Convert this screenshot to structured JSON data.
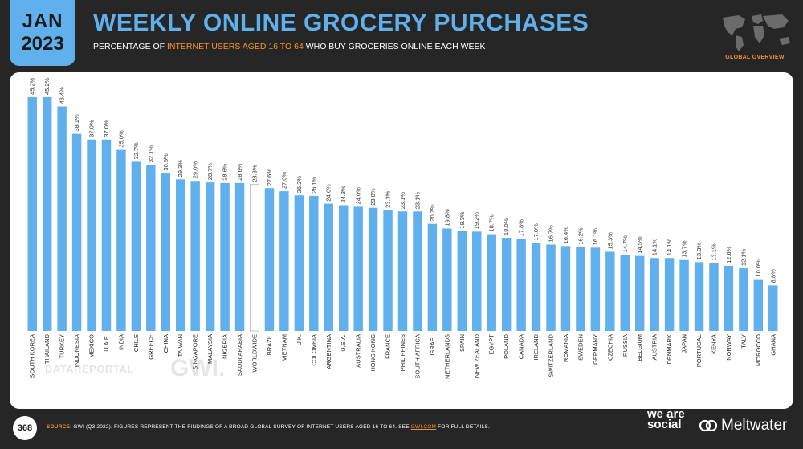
{
  "header": {
    "month": "JAN",
    "year": "2023",
    "title": "WEEKLY ONLINE GROCERY PURCHASES",
    "subtitle_pre": "PERCENTAGE OF ",
    "subtitle_highlight": "INTERNET USERS AGED 16 TO 64",
    "subtitle_post": " WHO BUY GROCERIES ONLINE EACH WEEK",
    "map_label": "GLOBAL OVERVIEW"
  },
  "watermarks": {
    "datareportal": "DATAREPORTAL",
    "gwi": "GWI."
  },
  "footer": {
    "page_number": "368",
    "source_label": "SOURCE:",
    "source_text": " GWI (Q3 2022). FIGURES REPRESENT THE FINDINGS OF A BROAD GLOBAL SURVEY OF INTERNET USERS AGED 16 TO 64. SEE ",
    "source_link": "GWI.COM",
    "source_end": " FOR FULL DETAILS.",
    "brand1": "we are social",
    "brand2": "Meltwater"
  },
  "colors": {
    "bar": "#5fb0ec",
    "highlight_bar": "#ffffff",
    "accent": "#f3922d",
    "background": "#262626"
  },
  "chart_data": {
    "type": "bar",
    "categories": [
      "SOUTH KOREA",
      "THAILAND",
      "TURKEY",
      "INDONESIA",
      "MEXICO",
      "U.A.E.",
      "INDIA",
      "CHILE",
      "GREECE",
      "CHINA",
      "TAIWAN",
      "SINGAPORE",
      "MALAYSIA",
      "NIGERIA",
      "SAUDI ARABIA",
      "WORLDWIDE",
      "BRAZIL",
      "VIETNAM",
      "U.K.",
      "COLOMBIA",
      "ARGENTINA",
      "U.S.A.",
      "AUSTRALIA",
      "HONG KONG",
      "FRANCE",
      "PHILIPPINES",
      "SOUTH AFRICA",
      "ISRAEL",
      "NETHERLANDS",
      "SPAIN",
      "NEW ZEALAND",
      "EGYPT",
      "POLAND",
      "CANADA",
      "IRELAND",
      "SWITZERLAND",
      "ROMANIA",
      "SWEDEN",
      "GERMANY",
      "CZECHIA",
      "RUSSIA",
      "BELGIUM",
      "AUSTRIA",
      "DENMARK",
      "JAPAN",
      "PORTUGAL",
      "KENYA",
      "NORWAY",
      "ITALY",
      "MOROCCO",
      "GHANA"
    ],
    "values": [
      45.2,
      45.2,
      43.4,
      38.1,
      37.0,
      37.0,
      35.0,
      32.7,
      32.1,
      30.5,
      29.3,
      29.0,
      28.7,
      28.6,
      28.6,
      28.3,
      27.6,
      27.0,
      26.2,
      26.1,
      24.6,
      24.3,
      24.0,
      23.8,
      23.3,
      23.1,
      23.1,
      20.7,
      19.8,
      19.3,
      19.2,
      18.7,
      18.0,
      17.8,
      17.0,
      16.7,
      16.4,
      16.2,
      16.1,
      15.3,
      14.7,
      14.5,
      14.1,
      14.1,
      13.7,
      13.3,
      13.1,
      12.6,
      12.1,
      10.0,
      8.8
    ],
    "labels": [
      "45.2%",
      "45.2%",
      "43.4%",
      "38.1%",
      "37.0%",
      "37.0%",
      "35.0%",
      "32.7%",
      "32.1%",
      "30.5%",
      "29.3%",
      "29.0%",
      "28.7%",
      "28.6%",
      "28.6%",
      "28.3%",
      "27.6%",
      "27.0%",
      "26.2%",
      "26.1%",
      "24.6%",
      "24.3%",
      "24.0%",
      "23.8%",
      "23.3%",
      "23.1%",
      "23.1%",
      "20.7%",
      "19.8%",
      "19.3%",
      "19.2%",
      "18.7%",
      "18.0%",
      "17.8%",
      "17.0%",
      "16.7%",
      "16.4%",
      "16.2%",
      "16.1%",
      "15.3%",
      "14.7%",
      "14.5%",
      "14.1%",
      "14.1%",
      "13.7%",
      "13.3%",
      "13.1%",
      "12.6%",
      "12.1%",
      "10.0%",
      "8.8%"
    ],
    "highlight": "WORLDWIDE",
    "ylim": [
      0,
      50
    ],
    "grid": false
  }
}
